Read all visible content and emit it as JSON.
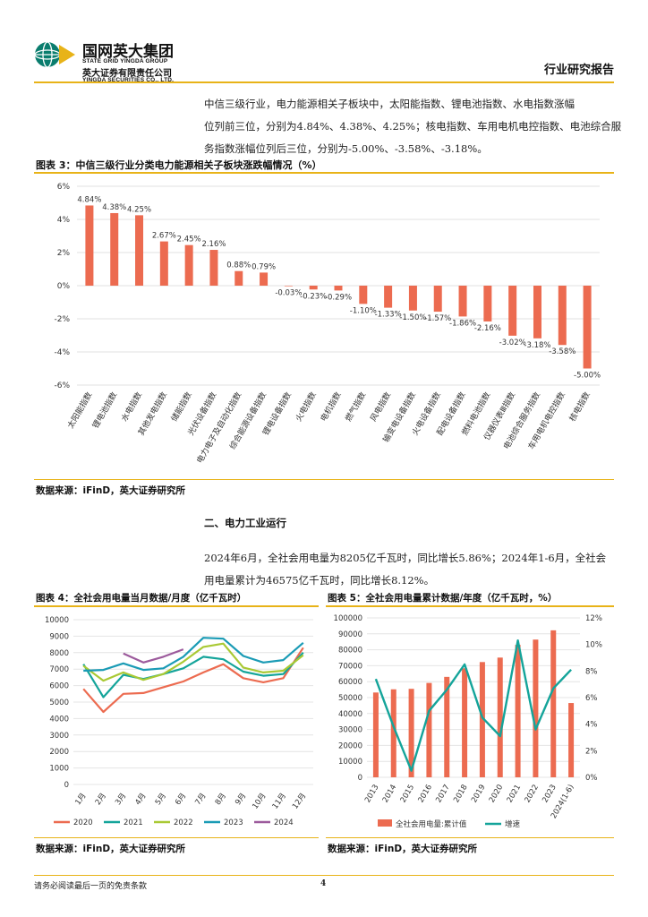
{
  "header": {
    "company_cn": "国网英大集团",
    "group_en": "STATE GRID YINGDA GROUP",
    "sub_cn": "英大证券有限责任公司",
    "sub_en": "YINGDA SECURITIES CO., LTD.",
    "report_type": "行业研究报告"
  },
  "intro": {
    "line1": "中信三级行业，电力能源相关子板块中，太阳能指数、锂电池指数、水电指数涨幅",
    "line2": "位列前三位，分别为4.84%、4.38%、4.25%；核电指数、车用电机电控指数、电池综合服",
    "line3": "务指数涨幅位列后三位，分别为-5.00%、-3.58%、-3.18%。"
  },
  "section2": {
    "title": "二、电力工业运行",
    "line1": "2024年6月，全社会用电量为8205亿千瓦时，同比增长5.86%；2024年1-6月，全社会",
    "line2": "用电量累计为46575亿千瓦时，同比增长8.12%。"
  },
  "colors": {
    "bar": "#ec6b50",
    "gold": "#e8b318",
    "teal": "#14a49a"
  },
  "chart_data": [
    {
      "type": "bar",
      "title": "图表 3：中信三级行业分类电力能源相关子板块涨跌幅情况（%）",
      "categories": [
        "太阳能指数",
        "锂电池指数",
        "水电指数",
        "其他发电指数",
        "储能指数",
        "光伏设备指数",
        "电力电子及自动化指数",
        "综合能源设备指数",
        "锂电设备指数",
        "火电指数",
        "电机指数",
        "燃气指数",
        "风电指数",
        "输变电设备指数",
        "火电设备指数",
        "配电设备指数",
        "燃料电池指数",
        "仪器仪表Ⅲ指数",
        "电池综合服务指数",
        "车用电机电控指数",
        "核电指数"
      ],
      "values": [
        4.84,
        4.38,
        4.25,
        2.67,
        2.45,
        2.16,
        0.88,
        0.79,
        -0.03,
        -0.23,
        -0.29,
        -1.1,
        -1.33,
        -1.5,
        -1.57,
        -1.86,
        -2.16,
        -3.02,
        -3.18,
        -3.58,
        -5.0
      ],
      "value_labels": [
        "4.84%",
        "4.38%",
        "4.25%",
        "2.67%",
        "2.45%",
        "2.16%",
        "0.88%",
        "0.79%",
        "-0.03%",
        "-0.23%",
        "-0.29%",
        "-1.10%",
        "-1.33%",
        "-1.50%",
        "-1.57%",
        "-1.86%",
        "-2.16%",
        "-3.02%",
        "-3.18%",
        "-3.58%",
        "-5.00%"
      ],
      "ylim": [
        -6,
        6
      ],
      "yticks": [
        6,
        4,
        2,
        0,
        -2,
        -4,
        -6
      ],
      "ytick_labels": [
        "6%",
        "4%",
        "2%",
        "0%",
        "-2%",
        "-4%",
        "-6%"
      ],
      "source": "数据来源：iFinD，英大证券研究所"
    },
    {
      "type": "line",
      "title": "图表 4：全社会用电量当月数据/月度（亿千瓦时）",
      "categories": [
        "1月",
        "2月",
        "3月",
        "4月",
        "5月",
        "6月",
        "7月",
        "8月",
        "9月",
        "10月",
        "11月",
        "12月"
      ],
      "series": [
        {
          "name": "2020",
          "color": "#ec6b50",
          "values": [
            5800,
            4400,
            5500,
            5550,
            5900,
            6250,
            6800,
            7300,
            6450,
            6200,
            6450,
            8300
          ]
        },
        {
          "name": "2021",
          "color": "#14a49a",
          "values": [
            7300,
            5300,
            6650,
            6400,
            6700,
            7050,
            7750,
            7600,
            6850,
            6600,
            6700,
            8000
          ]
        },
        {
          "name": "2022",
          "color": "#a9c934",
          "values": [
            7200,
            6300,
            6800,
            6350,
            6700,
            7450,
            8350,
            8550,
            7100,
            6800,
            6900,
            7850
          ]
        },
        {
          "name": "2023",
          "color": "#1a9bb5",
          "values": [
            6900,
            6950,
            7350,
            6950,
            7050,
            7750,
            8900,
            8850,
            7800,
            7400,
            7550,
            8600
          ]
        },
        {
          "name": "2024",
          "color": "#9c5a9c",
          "values": [
            null,
            null,
            7950,
            7400,
            7750,
            8200,
            null,
            null,
            null,
            null,
            null,
            null
          ]
        }
      ],
      "ylim": [
        0,
        10000
      ],
      "yticks": [
        0,
        1000,
        2000,
        3000,
        4000,
        5000,
        6000,
        7000,
        8000,
        9000,
        10000
      ],
      "source": "数据来源：iFinD，英大证券研究所"
    },
    {
      "type": "bar",
      "title": "图表 5：全社会用电量累计数据/年度（亿千瓦时，%）",
      "categories": [
        "2013",
        "2014",
        "2015",
        "2016",
        "2017",
        "2018",
        "2019",
        "2020",
        "2021",
        "2022",
        "2023",
        "2024(1-6)"
      ],
      "series": [
        {
          "name": "全社会用电量:累计值",
          "type": "bar",
          "color": "#ec6b50",
          "values": [
            53200,
            55200,
            55500,
            59200,
            63000,
            68400,
            72300,
            75100,
            83100,
            86400,
            92200,
            46600
          ]
        },
        {
          "name": "增速",
          "type": "line",
          "color": "#14a49a",
          "values": [
            7.4,
            3.8,
            0.5,
            5.0,
            6.6,
            8.5,
            4.5,
            3.1,
            10.3,
            3.6,
            6.7,
            8.1
          ]
        }
      ],
      "ylim_left": [
        0,
        100000
      ],
      "yticks_left": [
        0,
        10000,
        20000,
        30000,
        40000,
        50000,
        60000,
        70000,
        80000,
        90000,
        100000
      ],
      "ylim_right": [
        0,
        12
      ],
      "yticks_right": [
        "0%",
        "2%",
        "4%",
        "6%",
        "8%",
        "10%",
        "12%"
      ],
      "source": "数据来源：iFinD，英大证券研究所"
    }
  ],
  "footer": {
    "disclaimer": "请务必阅读最后一页的免责条款",
    "page": "4"
  }
}
